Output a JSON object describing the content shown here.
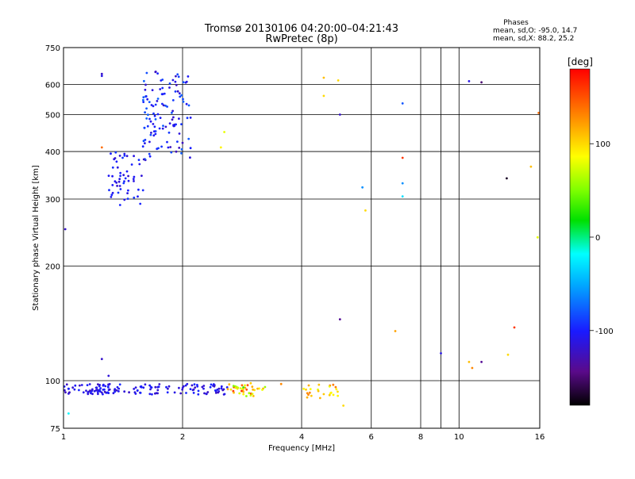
{
  "chart_data": {
    "type": "scatter",
    "title": "Tromsø 20130106 04:20:00–04:21:43",
    "subtitle": "RwPretec (8p)",
    "xlabel": "Frequency [MHz]",
    "ylabel": "Stationary phase Virtual Height [km]",
    "x_scale": "log",
    "y_scale": "log",
    "xlim": [
      1,
      16
    ],
    "ylim": [
      75,
      750
    ],
    "x_ticks": [
      1,
      2,
      4,
      6,
      8,
      9,
      10,
      16
    ],
    "x_tick_labels": [
      "1",
      "2",
      "4",
      "6",
      "8",
      "",
      "10",
      "16"
    ],
    "y_ticks": [
      75,
      100,
      200,
      300,
      400,
      500,
      600,
      750
    ],
    "y_tick_labels": [
      "75",
      "100",
      "200",
      "300",
      "400",
      "500",
      "600",
      "750"
    ],
    "grid": true,
    "legend_position": "top-right",
    "stats": {
      "heading": "Phases",
      "line_o": "mean, sd,O: -95.0, 14.7",
      "line_x": "mean, sd,X:  88.2, 25.2"
    },
    "colorbar": {
      "label": "[deg]",
      "range": [
        -180,
        180
      ],
      "ticks": [
        100,
        0,
        -100
      ],
      "tick_labels": [
        "100",
        "0",
        "-100"
      ]
    },
    "clusters": [
      {
        "name": "",
        "fmin": 1.58,
        "fmax": 2.1,
        "hmin": 380,
        "hmax": 650,
        "n": 120,
        "phase": -100,
        "spread": 25,
        "seed": 11
      },
      {
        "name": "",
        "fmin": 1.3,
        "fmax": 1.6,
        "hmin": 288,
        "hmax": 400,
        "n": 55,
        "phase": -105,
        "spread": 15,
        "seed": 12
      },
      {
        "name": "",
        "fmin": 1.0,
        "fmax": 2.6,
        "hmin": 92,
        "hmax": 98,
        "n": 150,
        "phase": -110,
        "spread": 15,
        "seed": 13
      },
      {
        "name": "",
        "fmin": 2.6,
        "fmax": 3.3,
        "hmin": 91,
        "hmax": 99,
        "n": 40,
        "phase": 110,
        "spread": 60,
        "seed": 14
      },
      {
        "name": "",
        "fmin": 4.0,
        "fmax": 4.95,
        "hmin": 90,
        "hmax": 98,
        "n": 25,
        "phase": 110,
        "spread": 30,
        "seed": 15
      }
    ],
    "points": [
      {
        "f": 1.25,
        "h": 640,
        "phase": -120
      },
      {
        "f": 1.25,
        "h": 632,
        "phase": -110
      },
      {
        "f": 1.25,
        "h": 410,
        "phase": 140
      },
      {
        "f": 1.01,
        "h": 250,
        "phase": -120
      },
      {
        "f": 1.03,
        "h": 82,
        "phase": -20
      },
      {
        "f": 1.25,
        "h": 114,
        "phase": -120
      },
      {
        "f": 1.3,
        "h": 103,
        "phase": -115
      },
      {
        "f": 2.05,
        "h": 610,
        "phase": -110
      },
      {
        "f": 2.55,
        "h": 450,
        "phase": 80
      },
      {
        "f": 2.5,
        "h": 410,
        "phase": 90
      },
      {
        "f": 4.55,
        "h": 625,
        "phase": 110
      },
      {
        "f": 4.95,
        "h": 615,
        "phase": 100
      },
      {
        "f": 4.55,
        "h": 560,
        "phase": 100
      },
      {
        "f": 5.0,
        "h": 500,
        "phase": -120
      },
      {
        "f": 5.1,
        "h": 86,
        "phase": 100
      },
      {
        "f": 5.7,
        "h": 322,
        "phase": -60
      },
      {
        "f": 5.8,
        "h": 280,
        "phase": 100
      },
      {
        "f": 5.0,
        "h": 145,
        "phase": -140
      },
      {
        "f": 6.9,
        "h": 135,
        "phase": 120
      },
      {
        "f": 7.2,
        "h": 535,
        "phase": -80
      },
      {
        "f": 7.2,
        "h": 385,
        "phase": 160
      },
      {
        "f": 7.2,
        "h": 330,
        "phase": -60
      },
      {
        "f": 7.2,
        "h": 305,
        "phase": -30
      },
      {
        "f": 9.0,
        "h": 118,
        "phase": -110
      },
      {
        "f": 10.6,
        "h": 112,
        "phase": 110
      },
      {
        "f": 10.8,
        "h": 108,
        "phase": 130
      },
      {
        "f": 11.4,
        "h": 112,
        "phase": -140
      },
      {
        "f": 10.6,
        "h": 612,
        "phase": -110
      },
      {
        "f": 11.4,
        "h": 608,
        "phase": -150
      },
      {
        "f": 13.2,
        "h": 340,
        "phase": -170
      },
      {
        "f": 13.3,
        "h": 117,
        "phase": 100
      },
      {
        "f": 13.8,
        "h": 138,
        "phase": 160
      },
      {
        "f": 15.2,
        "h": 365,
        "phase": 110
      },
      {
        "f": 15.9,
        "h": 505,
        "phase": 140
      },
      {
        "f": 15.8,
        "h": 238,
        "phase": 80
      },
      {
        "f": 2.85,
        "h": 96,
        "phase": 30
      },
      {
        "f": 3.55,
        "h": 98,
        "phase": 130
      }
    ]
  }
}
